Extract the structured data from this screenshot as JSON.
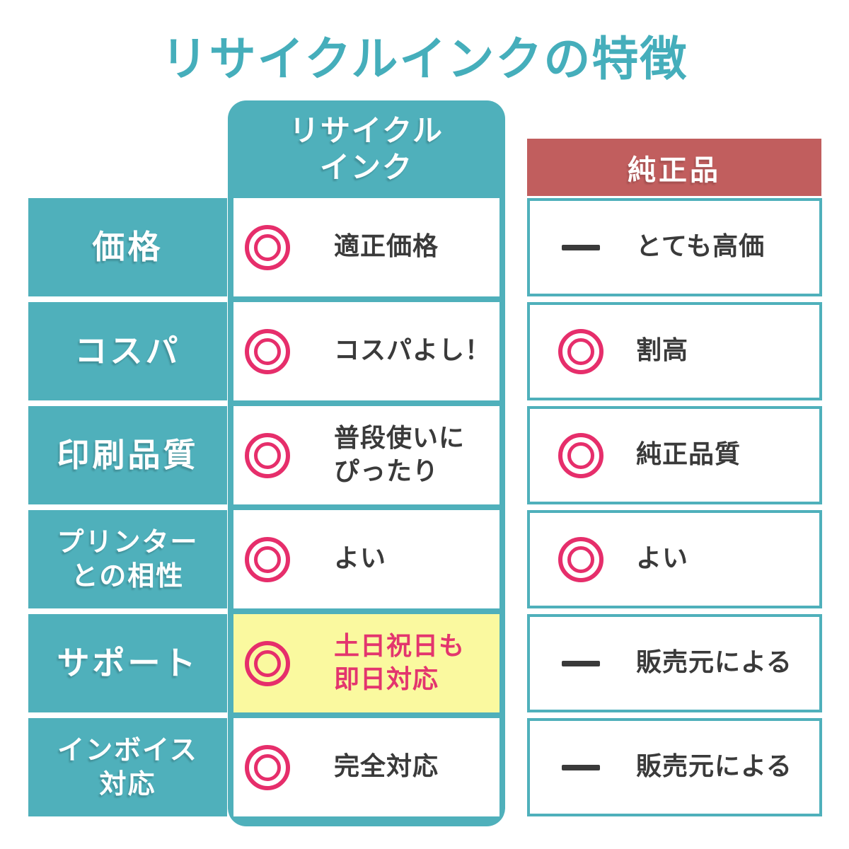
{
  "title": "リサイクルインクの特徴",
  "columns": {
    "recycled": "リサイクル\nインク",
    "genuine": "純正品"
  },
  "rows": [
    {
      "header": "価格",
      "recycled": {
        "icon": "double-circle",
        "text": "適正価格"
      },
      "genuine": {
        "icon": "dash",
        "text": "とても高価"
      }
    },
    {
      "header": "コスパ",
      "recycled": {
        "icon": "double-circle",
        "text": "コスパよし！"
      },
      "genuine": {
        "icon": "double-circle",
        "text": "割高"
      }
    },
    {
      "header": "印刷品質",
      "recycled": {
        "icon": "double-circle",
        "text": "普段使いに\nぴったり"
      },
      "genuine": {
        "icon": "double-circle",
        "text": "純正品質"
      }
    },
    {
      "header": "プリンター\nとの相性",
      "recycled": {
        "icon": "double-circle",
        "text": "よい"
      },
      "genuine": {
        "icon": "double-circle",
        "text": "よい"
      }
    },
    {
      "header": "サポート",
      "recycled": {
        "icon": "double-circle",
        "text": "土日祝日も\n即日対応",
        "highlight": true
      },
      "genuine": {
        "icon": "dash",
        "text": "販売元による"
      }
    },
    {
      "header": "インボイス\n対応",
      "recycled": {
        "icon": "double-circle",
        "text": "完全対応"
      },
      "genuine": {
        "icon": "dash",
        "text": "販売元による"
      }
    }
  ],
  "colors": {
    "teal": "#4FB0BB",
    "red": "#C15E5E",
    "pink_icon": "#E62E6B",
    "highlight_bg": "#FAF99F",
    "highlight_text": "#E3356E",
    "text_dark": "#3A3A3A",
    "title_teal": "#45AEBB"
  }
}
